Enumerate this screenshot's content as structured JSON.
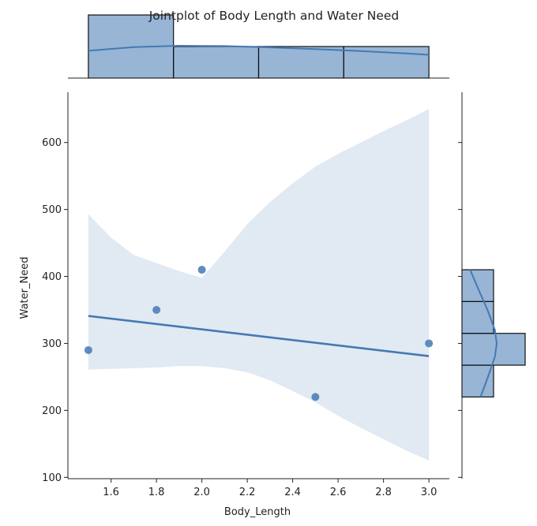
{
  "chart_data": {
    "type": "scatter",
    "title": "Jointplot of Body Length and Water Need",
    "xlabel": "Body_Length",
    "ylabel": "Water_Need",
    "xlim": [
      1.41,
      3.09
    ],
    "ylim": [
      98,
      675
    ],
    "x_ticks": [
      "1.6",
      "1.8",
      "2.0",
      "2.2",
      "2.4",
      "2.6",
      "2.8",
      "3.0"
    ],
    "y_ticks": [
      "100",
      "200",
      "300",
      "400",
      "500",
      "600"
    ],
    "grid": false,
    "color": "#4479b3",
    "points": [
      {
        "x": 1.5,
        "y": 290
      },
      {
        "x": 1.8,
        "y": 350
      },
      {
        "x": 2.0,
        "y": 410
      },
      {
        "x": 2.5,
        "y": 220
      },
      {
        "x": 3.0,
        "y": 300
      }
    ],
    "regression": {
      "x": [
        1.5,
        3.0
      ],
      "y": [
        341,
        281
      ]
    },
    "confidence_band": {
      "x": [
        1.5,
        1.6,
        1.7,
        1.8,
        1.9,
        2.0,
        2.1,
        2.2,
        2.3,
        2.4,
        2.5,
        2.6,
        2.7,
        2.8,
        2.9,
        3.0
      ],
      "upper": [
        493,
        458,
        432,
        420,
        408,
        398,
        437,
        478,
        511,
        539,
        564,
        583,
        600,
        617,
        633,
        650
      ],
      "lower": [
        261,
        262,
        263,
        264,
        266,
        266,
        263,
        257,
        245,
        229,
        212,
        192,
        174,
        157,
        140,
        125
      ]
    },
    "top_histogram": {
      "bins": [
        [
          1.5,
          1.875
        ],
        [
          1.875,
          2.25
        ],
        [
          2.25,
          2.625
        ],
        [
          2.625,
          3.0
        ]
      ],
      "counts": [
        2,
        1,
        1,
        1
      ],
      "kde": {
        "x": [
          1.5,
          1.7,
          1.9,
          2.1,
          2.3,
          2.5,
          2.7,
          2.9,
          3.0
        ],
        "density": [
          1.62,
          1.84,
          1.92,
          1.9,
          1.82,
          1.72,
          1.6,
          1.46,
          1.38
        ]
      }
    },
    "right_histogram": {
      "bins": [
        [
          220,
          267.5
        ],
        [
          267.5,
          315
        ],
        [
          315,
          362.5
        ],
        [
          362.5,
          410
        ]
      ],
      "counts": [
        1,
        2,
        1,
        1
      ],
      "kde": {
        "y": [
          220,
          250,
          280,
          300,
          320,
          350,
          380,
          410
        ],
        "density": [
          0.8,
          1.12,
          1.42,
          1.5,
          1.42,
          1.1,
          0.72,
          0.35
        ]
      }
    }
  }
}
